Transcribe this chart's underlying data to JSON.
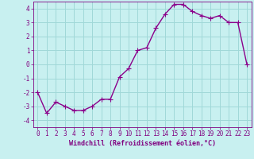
{
  "x": [
    0,
    1,
    2,
    3,
    4,
    5,
    6,
    7,
    8,
    9,
    10,
    11,
    12,
    13,
    14,
    15,
    16,
    17,
    18,
    19,
    20,
    21,
    22,
    23
  ],
  "y": [
    -2.0,
    -3.5,
    -2.7,
    -3.0,
    -3.3,
    -3.3,
    -3.0,
    -2.5,
    -2.5,
    -0.9,
    -0.3,
    1.0,
    1.2,
    2.6,
    3.6,
    4.3,
    4.3,
    3.8,
    3.5,
    3.3,
    3.5,
    3.0,
    3.0,
    0.0
  ],
  "line_color": "#8B008B",
  "marker": "+",
  "marker_size": 4,
  "bg_color": "#c8f0f0",
  "grid_color": "#a0d8d8",
  "xlabel": "Windchill (Refroidissement éolien,°C)",
  "ylim": [
    -4.5,
    4.5
  ],
  "xlim": [
    -0.5,
    23.5
  ],
  "yticks": [
    -4,
    -3,
    -2,
    -1,
    0,
    1,
    2,
    3,
    4
  ],
  "xticks": [
    0,
    1,
    2,
    3,
    4,
    5,
    6,
    7,
    8,
    9,
    10,
    11,
    12,
    13,
    14,
    15,
    16,
    17,
    18,
    19,
    20,
    21,
    22,
    23
  ],
  "tick_color": "#800080",
  "label_color": "#800080",
  "font_size": 5.5,
  "xlabel_fontsize": 6.0,
  "linewidth": 1.0,
  "spine_color": "#800080",
  "marker_linewidth": 0.8
}
